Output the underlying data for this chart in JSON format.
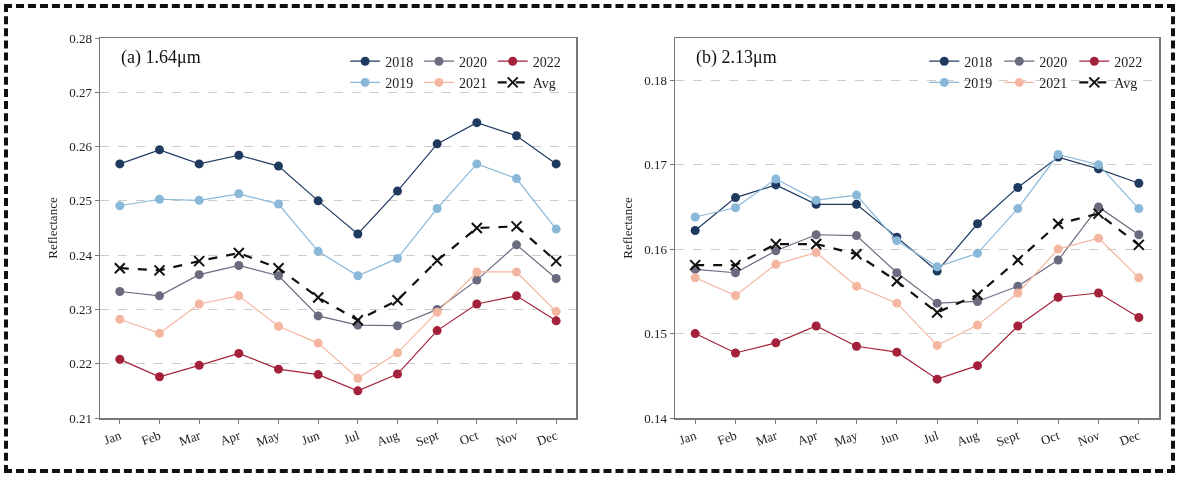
{
  "chart_data": [
    {
      "type": "line",
      "title": "(a) 1.64μm",
      "ylabel": "Reflectance",
      "categories": [
        "Jan",
        "Feb",
        "Mar",
        "Apr",
        "May",
        "Jun",
        "Jul",
        "Aug",
        "Sept",
        "Oct",
        "Nov",
        "Dec"
      ],
      "ylim": [
        0.21,
        0.28
      ],
      "yticks": [
        0.21,
        0.22,
        0.23,
        0.24,
        0.25,
        0.26,
        0.27,
        0.28
      ],
      "grid": "y",
      "legend": "top right",
      "series": [
        {
          "name": "2018",
          "color": "#1f3a5f",
          "marker": "circle",
          "line_style": "solid",
          "values": [
            0.2568,
            0.2594,
            0.2568,
            0.2584,
            0.2564,
            0.25,
            0.2439,
            0.2518,
            0.2605,
            0.2644,
            0.262,
            0.2568
          ]
        },
        {
          "name": "2019",
          "color": "#8ab8d8",
          "marker": "circle",
          "line_style": "solid",
          "values": [
            0.2491,
            0.2503,
            0.2501,
            0.2513,
            0.2494,
            0.2407,
            0.2362,
            0.2394,
            0.2486,
            0.2568,
            0.2541,
            0.2448
          ]
        },
        {
          "name": "2020",
          "color": "#6b6b80",
          "marker": "circle",
          "line_style": "solid",
          "values": [
            0.2333,
            0.2325,
            0.2364,
            0.2381,
            0.2362,
            0.2288,
            0.2271,
            0.227,
            0.23,
            0.2354,
            0.2419,
            0.2357
          ]
        },
        {
          "name": "2021",
          "color": "#f4b6a0",
          "marker": "circle",
          "line_style": "solid",
          "values": [
            0.2282,
            0.2256,
            0.231,
            0.2325,
            0.2269,
            0.2238,
            0.2173,
            0.222,
            0.2295,
            0.2369,
            0.2369,
            0.2296
          ]
        },
        {
          "name": "2022",
          "color": "#a3213a",
          "marker": "circle",
          "line_style": "solid",
          "values": [
            0.2208,
            0.2176,
            0.2197,
            0.2219,
            0.219,
            0.218,
            0.215,
            0.2181,
            0.2261,
            0.231,
            0.2325,
            0.2279
          ]
        },
        {
          "name": "Avg",
          "color": "#111111",
          "marker": "cross",
          "line_style": "dashed",
          "values": [
            0.2376,
            0.2372,
            0.2389,
            0.2404,
            0.2376,
            0.2322,
            0.228,
            0.2317,
            0.239,
            0.245,
            0.2453,
            0.2389
          ]
        }
      ]
    },
    {
      "type": "line",
      "title": "(b) 2.13μm",
      "ylabel": "Reflectance",
      "categories": [
        "Jan",
        "Feb",
        "Mar",
        "Apr",
        "May",
        "Jun",
        "Jul",
        "Aug",
        "Sept",
        "Oct",
        "Nov",
        "Dec"
      ],
      "ylim": [
        0.14,
        0.185
      ],
      "yticks": [
        0.14,
        0.15,
        0.16,
        0.17,
        0.18
      ],
      "grid": "y",
      "legend": "top right",
      "series": [
        {
          "name": "2018",
          "color": "#1f3a5f",
          "marker": "circle",
          "line_style": "solid",
          "values": [
            0.1622,
            0.1661,
            0.1676,
            0.1653,
            0.1653,
            0.1614,
            0.1574,
            0.163,
            0.1673,
            0.1709,
            0.1695,
            0.1678
          ]
        },
        {
          "name": "2019",
          "color": "#8ab8d8",
          "marker": "circle",
          "line_style": "solid",
          "values": [
            0.1638,
            0.1649,
            0.1683,
            0.1658,
            0.1664,
            0.161,
            0.1579,
            0.1595,
            0.1648,
            0.1712,
            0.17,
            0.1648
          ]
        },
        {
          "name": "2020",
          "color": "#6b6b80",
          "marker": "circle",
          "line_style": "solid",
          "values": [
            0.1576,
            0.1572,
            0.1598,
            0.1617,
            0.1616,
            0.1572,
            0.1536,
            0.1538,
            0.1556,
            0.1587,
            0.165,
            0.1617
          ]
        },
        {
          "name": "2021",
          "color": "#f4b6a0",
          "marker": "circle",
          "line_style": "solid",
          "values": [
            0.1566,
            0.1545,
            0.1582,
            0.1596,
            0.1556,
            0.1536,
            0.1486,
            0.151,
            0.1548,
            0.16,
            0.1613,
            0.1566
          ]
        },
        {
          "name": "2022",
          "color": "#a3213a",
          "marker": "circle",
          "line_style": "solid",
          "values": [
            0.15,
            0.1477,
            0.1489,
            0.1509,
            0.1485,
            0.1478,
            0.1446,
            0.1462,
            0.1509,
            0.1543,
            0.1548,
            0.1519
          ]
        },
        {
          "name": "Avg",
          "color": "#111111",
          "marker": "cross",
          "line_style": "dashed",
          "values": [
            0.1581,
            0.1581,
            0.1606,
            0.1606,
            0.1594,
            0.1562,
            0.1525,
            0.1546,
            0.1587,
            0.163,
            0.1642,
            0.1605
          ]
        }
      ]
    }
  ]
}
